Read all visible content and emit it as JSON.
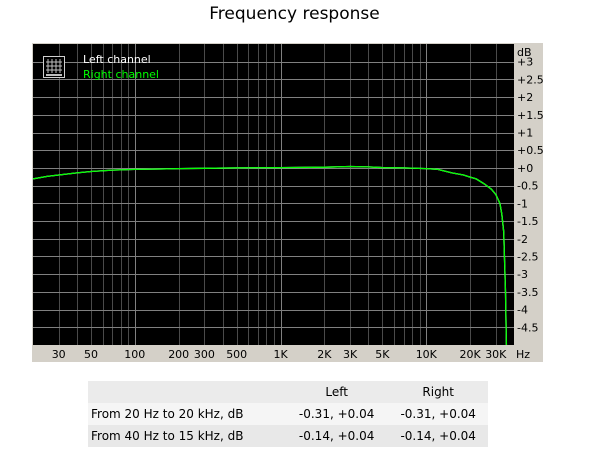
{
  "chart_data": {
    "type": "line",
    "title": "Frequency response",
    "xlabel": "",
    "ylabel": "",
    "x_scale": "log",
    "xlim": [
      20,
      40000
    ],
    "ylim": [
      -5,
      3.5
    ],
    "y_unit": "dB",
    "x_unit": "Hz",
    "x_tick_labels": [
      "30",
      "50",
      "100",
      "200",
      "300",
      "500",
      "1K",
      "2K",
      "3K",
      "5K",
      "10K",
      "20K",
      "30K"
    ],
    "x_tick_values": [
      30,
      50,
      100,
      200,
      300,
      500,
      1000,
      2000,
      3000,
      5000,
      10000,
      20000,
      30000
    ],
    "y_tick_labels": [
      "+3",
      "+2.5",
      "+2",
      "+1.5",
      "+1",
      "+0.5",
      "+0",
      "-0.5",
      "-1",
      "-1.5",
      "-2",
      "-2.5",
      "-3",
      "-3.5",
      "-4",
      "-4.5"
    ],
    "y_tick_values": [
      3,
      2.5,
      2,
      1.5,
      1,
      0.5,
      0,
      -0.5,
      -1,
      -1.5,
      -2,
      -2.5,
      -3,
      -3.5,
      -4,
      -4.5
    ],
    "grid": true,
    "legend_position": "top-left",
    "background": "#000000",
    "series": [
      {
        "name": "Left channel",
        "color": "#ffffff",
        "x": [
          20,
          25,
          30,
          40,
          50,
          70,
          100,
          150,
          200,
          300,
          500,
          1000,
          2000,
          3000,
          4000,
          5000,
          7000,
          10000,
          12000,
          15000,
          18000,
          20000,
          22000,
          25000,
          28000,
          30000,
          32000,
          33000,
          34000,
          35000,
          35500
        ],
        "y": [
          -0.31,
          -0.24,
          -0.2,
          -0.14,
          -0.1,
          -0.06,
          -0.04,
          -0.03,
          -0.02,
          -0.01,
          0,
          0.01,
          0.02,
          0.04,
          0.03,
          0.01,
          0,
          -0.02,
          -0.04,
          -0.14,
          -0.2,
          -0.26,
          -0.31,
          -0.45,
          -0.6,
          -0.75,
          -1.0,
          -1.3,
          -1.8,
          -3.5,
          -5.0
        ]
      },
      {
        "name": "Right channel",
        "color": "#00ff00",
        "x": [
          20,
          25,
          30,
          40,
          50,
          70,
          100,
          150,
          200,
          300,
          500,
          1000,
          2000,
          3000,
          4000,
          5000,
          7000,
          10000,
          12000,
          15000,
          18000,
          20000,
          22000,
          25000,
          28000,
          30000,
          32000,
          33000,
          34000,
          35000,
          35500
        ],
        "y": [
          -0.31,
          -0.24,
          -0.2,
          -0.14,
          -0.1,
          -0.06,
          -0.04,
          -0.03,
          -0.02,
          -0.01,
          0,
          0.01,
          0.02,
          0.04,
          0.03,
          0.01,
          0,
          -0.02,
          -0.04,
          -0.14,
          -0.2,
          -0.26,
          -0.31,
          -0.45,
          -0.6,
          -0.75,
          -1.0,
          -1.3,
          -1.8,
          -3.5,
          -5.0
        ]
      }
    ]
  },
  "table": {
    "headers": [
      "",
      "Left",
      "Right"
    ],
    "rows": [
      [
        "From 20 Hz to 20 kHz, dB",
        "-0.31, +0.04",
        "-0.31, +0.04"
      ],
      [
        "From 40 Hz to 15 kHz, dB",
        "-0.14, +0.04",
        "-0.14, +0.04"
      ]
    ]
  },
  "colors": {
    "plot_background": "#000000",
    "frame": "#d4d0c8",
    "grid_major": "#808080",
    "grid_minor": "#4a4a4a"
  }
}
